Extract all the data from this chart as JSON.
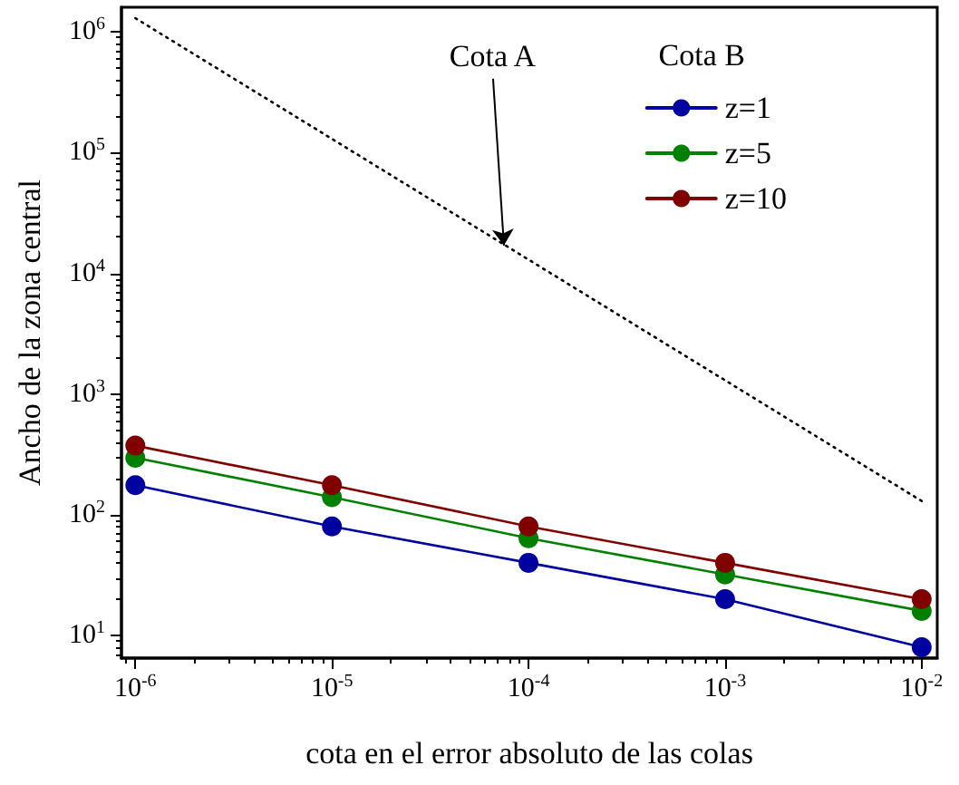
{
  "chart_data": {
    "type": "line",
    "xlabel": "cota en el error absoluto de las colas",
    "ylabel": "Ancho de la zona central",
    "legend_title": "Cota B",
    "log": "xy",
    "grid": false,
    "legend": "top right",
    "marker": "circle",
    "line_style": "solid",
    "xlim": [
      8.5e-07,
      0.012
    ],
    "ylim": [
      6.5,
      1600000
    ],
    "xticks": [
      {
        "value": 1e-06,
        "label": "10$^{-6}$"
      },
      {
        "value": 1e-05,
        "label": "10$^{-5}$"
      },
      {
        "value": 0.0001,
        "label": "10$^{-4}$"
      },
      {
        "value": 0.001,
        "label": "10$^{-3}$"
      },
      {
        "value": 0.01,
        "label": "10$^{-2}$"
      }
    ],
    "yticks": [
      {
        "value": 10,
        "label": "10$^{1}$"
      },
      {
        "value": 100,
        "label": "10$^{2}$"
      },
      {
        "value": 1000,
        "label": "10$^{3}$"
      },
      {
        "value": 10000,
        "label": "10$^{4}$"
      },
      {
        "value": 100000,
        "label": "10$^{5}$"
      },
      {
        "value": 1000000,
        "label": "10$^{6}$"
      }
    ],
    "x": [
      1e-06,
      1e-05,
      0.0001,
      0.001,
      0.01
    ],
    "series": [
      {
        "x": [
          1e-06,
          0.01
        ],
        "values": [
          1300000,
          130
        ],
        "color": "#000000",
        "line_style": "dotted",
        "marker": "none"
      },
      {
        "name": "z=1",
        "color": "#0000a0",
        "values": [
          176,
          80,
          40,
          20,
          8
        ]
      },
      {
        "name": "z=5",
        "color": "#008000",
        "values": [
          297,
          140,
          64,
          32,
          16
        ]
      },
      {
        "name": "z=10",
        "color": "#800000",
        "values": [
          374,
          176,
          80,
          40,
          20
        ]
      }
    ],
    "annotations": [
      {
        "text": "Cota A",
        "x": 7.5e-05,
        "y": 17000
      }
    ]
  }
}
